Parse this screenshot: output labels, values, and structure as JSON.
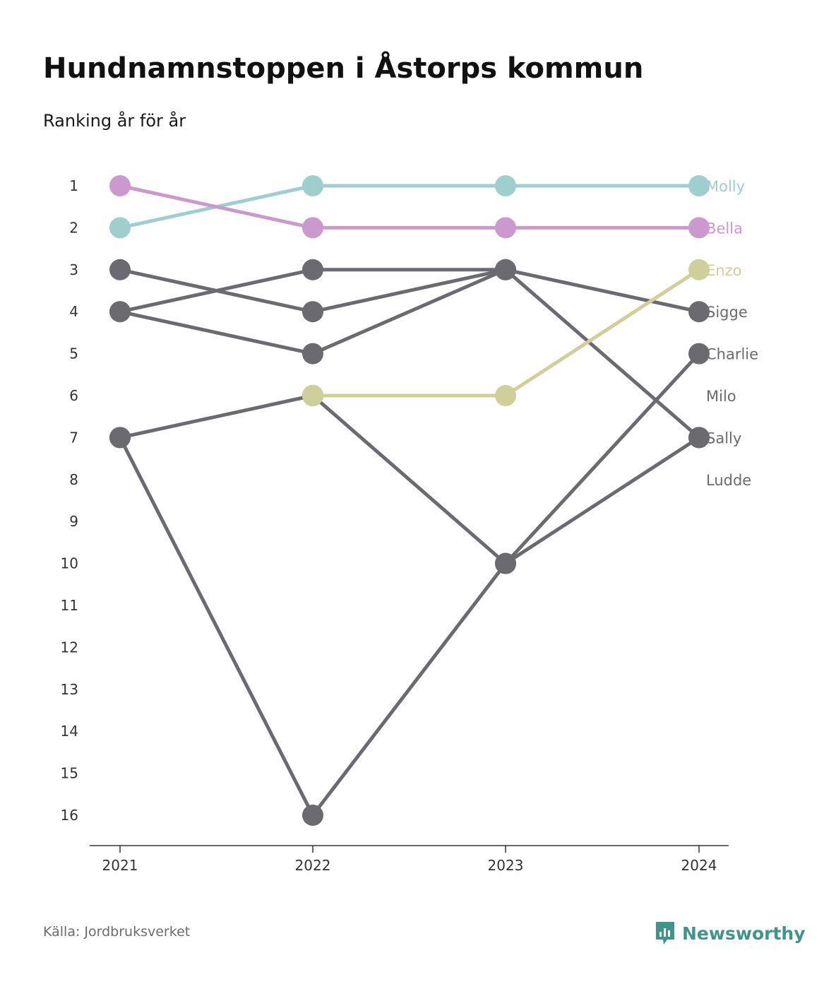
{
  "header": {
    "title": "Hundnamnstoppen i Åstorps kommun",
    "subtitle": "Ranking år för år"
  },
  "footer": {
    "source": "Källa: Jordbruksverket",
    "brand": "Newsworthy",
    "brand_icon": "newsworthy-logo-icon",
    "brand_color": "#3f958c"
  },
  "chart_data": {
    "type": "line",
    "subtype": "bump",
    "x": [
      "2021",
      "2022",
      "2023",
      "2024"
    ],
    "y_ticks": [
      1,
      2,
      3,
      4,
      5,
      6,
      7,
      8,
      9,
      10,
      11,
      12,
      13,
      14,
      15,
      16
    ],
    "ylim": [
      1,
      16
    ],
    "y_inverted": true,
    "grid": false,
    "legend": "direct labels at right end",
    "series": [
      {
        "name": "Molly",
        "values": [
          2,
          1,
          1,
          1
        ],
        "color": "#9ecfce"
      },
      {
        "name": "Bella",
        "values": [
          1,
          2,
          2,
          2
        ],
        "color": "#cc99cf"
      },
      {
        "name": "Enzo",
        "values": [
          null,
          6,
          6,
          3
        ],
        "color": "#cfcf99"
      },
      {
        "name": "Sigge",
        "values": [
          3,
          4,
          3,
          4
        ],
        "color": "#6b6a70"
      },
      {
        "name": "Charlie",
        "values": [
          7,
          16,
          10,
          5
        ],
        "color": "#6b6a70"
      },
      {
        "name": "Milo",
        "values": [
          4,
          3,
          3,
          null
        ],
        "color": "#6b6a70"
      },
      {
        "name": "Sally",
        "values": [
          4,
          5,
          3,
          7
        ],
        "color": "#6b6a70"
      },
      {
        "name": "Ludde",
        "values": [
          7,
          6,
          10,
          7
        ],
        "color": "#6b6a70"
      }
    ]
  }
}
